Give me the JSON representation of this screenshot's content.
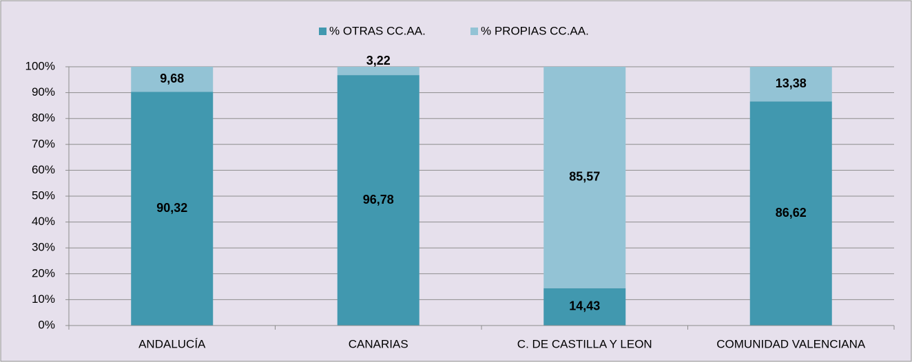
{
  "chart_data": {
    "type": "stacked_bar",
    "categories": [
      "ANDALUCÍA",
      "CANARIAS",
      "C. DE CASTILLA Y LEON",
      "COMUNIDAD VALENCIANA"
    ],
    "series": [
      {
        "name": "% OTRAS CC.AA.",
        "color": "#4198af",
        "values": [
          90.32,
          96.78,
          14.43,
          86.62
        ],
        "value_labels": [
          "90,32",
          "96,78",
          "14,43",
          "86,62"
        ]
      },
      {
        "name": "% PROPIAS CC.AA.",
        "color": "#93c3d5",
        "values": [
          9.68,
          3.22,
          85.57,
          13.38
        ],
        "value_labels": [
          "9,68",
          "3,22",
          "85,57",
          "13,38"
        ]
      }
    ],
    "ylim": [
      0,
      100
    ],
    "yticks": [
      {
        "value": 0,
        "label": "0%"
      },
      {
        "value": 10,
        "label": "10%"
      },
      {
        "value": 20,
        "label": "20%"
      },
      {
        "value": 30,
        "label": "30%"
      },
      {
        "value": 40,
        "label": "40%"
      },
      {
        "value": 50,
        "label": "50%"
      },
      {
        "value": 60,
        "label": "60%"
      },
      {
        "value": 70,
        "label": "70%"
      },
      {
        "value": 80,
        "label": "80%"
      },
      {
        "value": 90,
        "label": "90%"
      },
      {
        "value": 100,
        "label": "100%"
      }
    ],
    "grid": true,
    "legend": "top"
  }
}
